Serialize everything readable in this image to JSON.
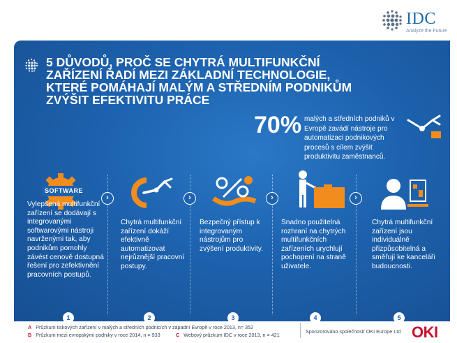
{
  "brand": {
    "idc_name": "IDC",
    "idc_tagline": "Analyze the Future",
    "oki_name": "OKI"
  },
  "header": {
    "title": "5 DŮVODŮ, PROČ SE CHYTRÁ MULTIFUNKČNÍ ZAŘÍZENÍ ŘADÍ MEZI ZÁKLADNÍ TECHNOLOGIE, KTERÉ POMÁHAJÍ MALÝM A STŘEDNÍM PODNIKŮM ZVÝŠIT EFEKTIVITU PRÁCE"
  },
  "stat": {
    "percent": "70%",
    "text": "malých a středních podniků v Evropě zavádí nástroje pro automatizaci podnikových procesů s cílem zvýšit produktivitu zaměstnanců."
  },
  "software_label": "SOFTWARE",
  "reasons": [
    {
      "number": "1",
      "text": "Vylepšená multifunkční zařízení se dodávají s integrovanými softwarovými nástroji navrženými tak, aby podnikům pomohly závést cenově dostupná řešení pro zefektivnění pracovních postupů."
    },
    {
      "number": "2",
      "text": "Chytrá multifunkční zařízení dokáží efektivně automatizovat nejrůznější pracovní postupy."
    },
    {
      "number": "3",
      "text": "Bezpečný přístup k integrovaným nástrojům pro zvýšení produktivity."
    },
    {
      "number": "4",
      "text": "Snadno použitelná rozhraní na chytrých multifunkčních zařízeních urychlují pochopení na straně uživatele."
    },
    {
      "number": "5",
      "text": "Chytrá multifunkční zařízení jsou individuálně přizpůsobitelná a směřují ke kanceláři budoucnosti."
    }
  ],
  "footnotes": [
    {
      "letter": "A",
      "text": "Průzkum tiskových zařízení v malých a středních podnicích v západní Evropě v roce 2013, n= 352"
    },
    {
      "letter": "B",
      "text": "Průzkum mezi evropskými podniky v roce 2014, n = 933"
    },
    {
      "letter": "C",
      "text": "Webový průzkum IDC v roce 2013, n = 421"
    }
  ],
  "sponsor": "Sponzorováno společností OKI Europe Ltd",
  "colors": {
    "panel_blue": "#1d62ae",
    "accent_orange": "#f28c1c",
    "oki_red": "#c8102e"
  },
  "icons": [
    "idc-globe-icon",
    "software-gear-icon",
    "robot-arm-icon",
    "percent-bubbles-icon",
    "user-at-screen-icon",
    "office-user-icon",
    "chevron-right-icon"
  ]
}
